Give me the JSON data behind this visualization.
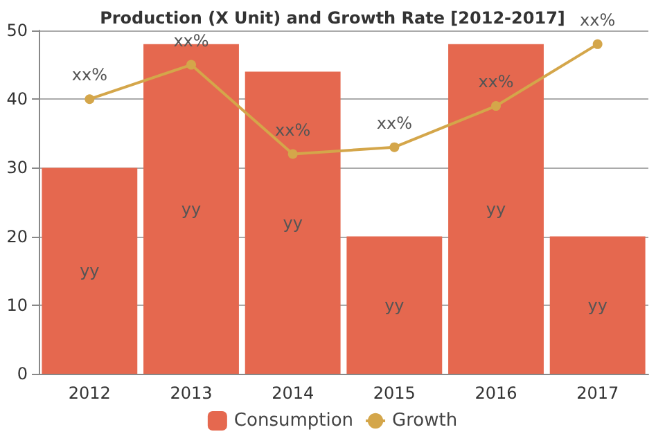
{
  "chart_data": {
    "type": "bar",
    "title": "Production (X Unit) and Growth Rate [2012-2017]",
    "categories": [
      "2012",
      "2013",
      "2014",
      "2015",
      "2016",
      "2017"
    ],
    "series": [
      {
        "name": "Consumption",
        "color": "#e5684f",
        "values": [
          30,
          48,
          44,
          20,
          48,
          20
        ],
        "value_labels": [
          "yy",
          "yy",
          "yy",
          "yy",
          "yy",
          "yy"
        ]
      },
      {
        "name": "Growth",
        "type": "line",
        "color": "#d4a64a",
        "values": [
          40,
          45,
          32,
          33,
          39,
          48
        ],
        "value_labels": [
          "xx%",
          "xx%",
          "xx%",
          "xx%",
          "xx%",
          "xx%"
        ],
        "marker": "circle"
      }
    ],
    "ylim": [
      0,
      50
    ],
    "yticks": [
      0,
      10,
      20,
      30,
      40,
      50
    ],
    "grid": "y",
    "legend": "bottom"
  }
}
